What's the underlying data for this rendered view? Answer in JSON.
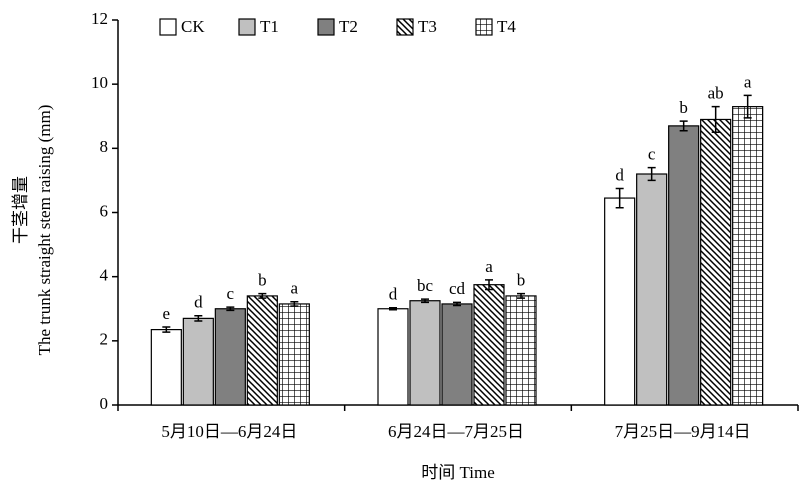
{
  "chart_data": {
    "type": "bar",
    "y_label": "The trunk straight stem raising (mm)",
    "y_label_cn": "干茎增量",
    "x_label": "时间 Time",
    "categories": [
      "5月10日—6月24日",
      "6月24日—7月25日",
      "7月25日—9月14日"
    ],
    "series": [
      {
        "name": "CK",
        "color": "#ffffff",
        "pattern": "solid",
        "values": [
          2.35,
          3.0,
          6.45
        ],
        "errors": [
          0.08,
          0.03,
          0.3
        ],
        "letters": [
          "e",
          "d",
          "d"
        ]
      },
      {
        "name": "T1",
        "color": "#c0c0c0",
        "pattern": "solid",
        "values": [
          2.7,
          3.25,
          7.2
        ],
        "errors": [
          0.08,
          0.05,
          0.2
        ],
        "letters": [
          "d",
          "bc",
          "c"
        ]
      },
      {
        "name": "T2",
        "color": "#808080",
        "pattern": "solid",
        "values": [
          3.0,
          3.15,
          8.7
        ],
        "errors": [
          0.05,
          0.05,
          0.15
        ],
        "letters": [
          "c",
          "cd",
          "b"
        ]
      },
      {
        "name": "T3",
        "color": "#ffffff",
        "pattern": "hatch",
        "values": [
          3.4,
          3.75,
          8.9
        ],
        "errors": [
          0.07,
          0.15,
          0.4
        ],
        "letters": [
          "b",
          "a",
          "ab"
        ]
      },
      {
        "name": "T4",
        "color": "#ffffff",
        "pattern": "grid",
        "values": [
          3.15,
          3.4,
          9.3
        ],
        "errors": [
          0.07,
          0.07,
          0.35
        ],
        "letters": [
          "a",
          "b",
          "a"
        ]
      }
    ],
    "ylim": [
      0,
      12
    ],
    "yticks": [
      0,
      2,
      4,
      6,
      8,
      10,
      12
    ],
    "grid": false
  }
}
